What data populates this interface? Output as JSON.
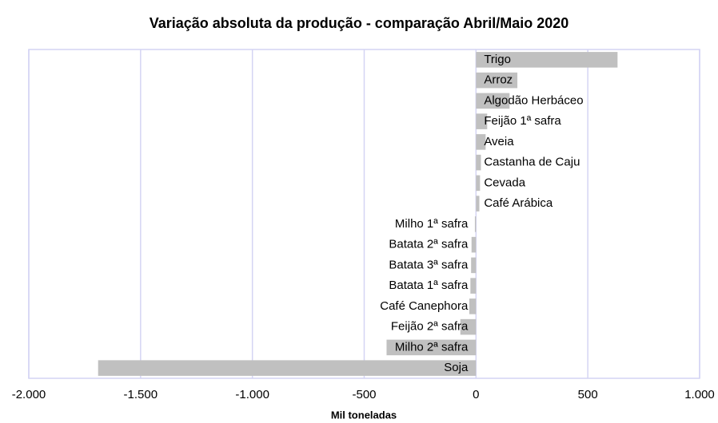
{
  "chart_data": {
    "type": "barh",
    "title": "Variação absoluta da produção - comparação Abril/Maio 2020",
    "xlabel": "Mil toneladas",
    "categories": [
      "Trigo",
      "Arroz",
      "Algodão Herbáceo",
      "Feijão 1ª safra",
      "Aveia",
      "Castanha de Caju",
      "Cevada",
      "Café Arábica",
      "Milho 1ª safra",
      "Batata 2ª safra",
      "Batata 3ª safra",
      "Batata 1ª safra",
      "Café Canephora",
      "Feijão 2ª safra",
      "Milho 2ª safra",
      "Soja"
    ],
    "values": [
      633,
      185,
      150,
      50,
      43,
      22,
      18,
      15,
      -5,
      -20,
      -22,
      -25,
      -30,
      -70,
      -400,
      -1690
    ],
    "color": "#c0c0c0",
    "xlim": [
      -2000,
      1000
    ],
    "xticks": [
      {
        "value": -2000,
        "label": "-2.000"
      },
      {
        "value": -1500,
        "label": "-1.500"
      },
      {
        "value": -1000,
        "label": "-1.000"
      },
      -500,
      0,
      500,
      {
        "value": 1000,
        "label": "1.000"
      }
    ],
    "grid": true
  }
}
